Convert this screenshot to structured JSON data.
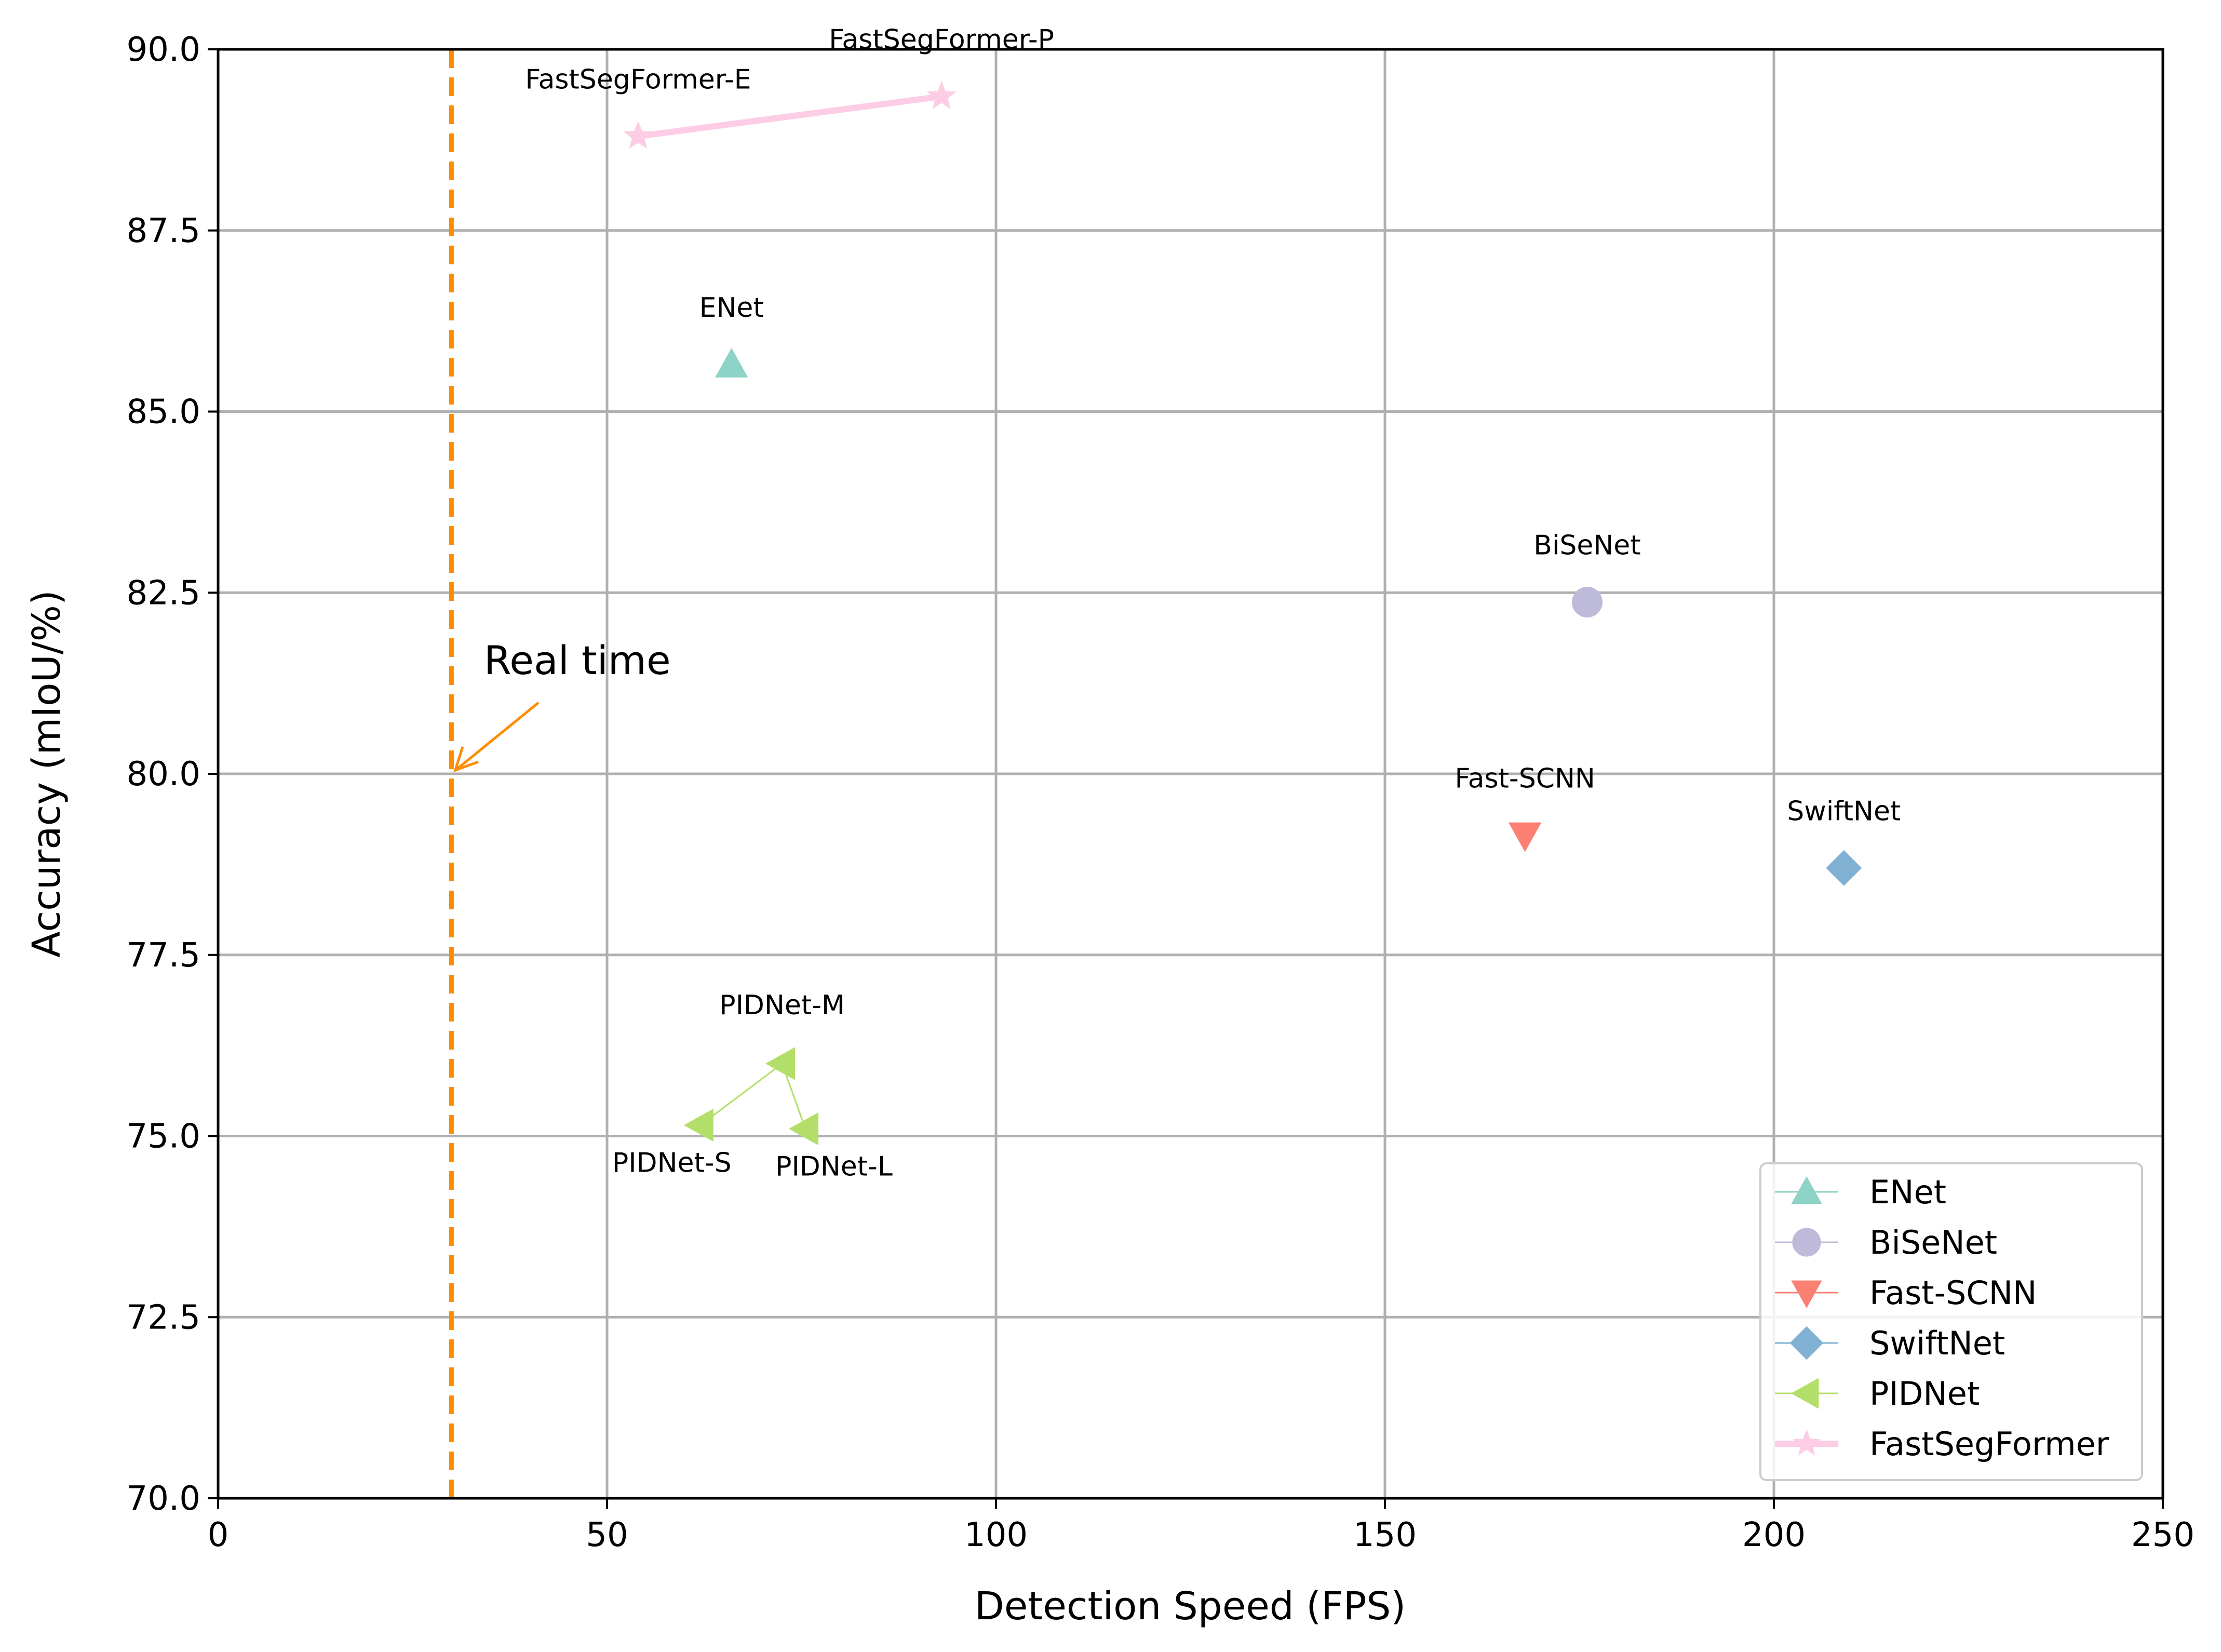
{
  "chart_data": {
    "type": "scatter",
    "xlabel": "Detection Speed (FPS)",
    "ylabel": "Accuracy (mIoU/%)",
    "xlim": [
      0,
      250
    ],
    "ylim": [
      70,
      90
    ],
    "x_ticks": [
      0,
      50,
      100,
      150,
      200,
      250
    ],
    "y_ticks": [
      70.0,
      72.5,
      75.0,
      77.5,
      80.0,
      82.5,
      85.0,
      87.5,
      90.0
    ],
    "x_tick_labels": [
      "0",
      "50",
      "100",
      "150",
      "200",
      "250"
    ],
    "y_tick_labels": [
      "70.0",
      "72.5",
      "75.0",
      "77.5",
      "80.0",
      "82.5",
      "85.0",
      "87.5",
      "90.0"
    ],
    "grid": true,
    "legend_position": "lower-right",
    "series": [
      {
        "name": "ENet",
        "color": "#8dd3c7",
        "marker": "triangle-up",
        "points": [
          {
            "x": 66,
            "y": 85.65,
            "label": "ENet"
          }
        ]
      },
      {
        "name": "BiSeNet",
        "color": "#bebada",
        "marker": "circle",
        "points": [
          {
            "x": 176,
            "y": 82.37,
            "label": "BiSeNet"
          }
        ]
      },
      {
        "name": "Fast-SCNN",
        "color": "#fb8072",
        "marker": "triangle-down",
        "points": [
          {
            "x": 168,
            "y": 79.15,
            "label": "Fast-SCNN"
          }
        ]
      },
      {
        "name": "SwiftNet",
        "color": "#80b1d3",
        "marker": "diamond",
        "points": [
          {
            "x": 209,
            "y": 78.7,
            "label": "SwiftNet"
          }
        ]
      },
      {
        "name": "PIDNet",
        "color": "#b3de69",
        "marker": "triangle-left",
        "points": [
          {
            "x": 62,
            "y": 75.15,
            "label": "PIDNet-S"
          },
          {
            "x": 72.5,
            "y": 76.0,
            "label": "PIDNet-M"
          },
          {
            "x": 75.5,
            "y": 75.1,
            "label": "PIDNet-L"
          }
        ]
      },
      {
        "name": "FastSegFormer",
        "color": "#fccde5",
        "marker": "star",
        "points": [
          {
            "x": 54,
            "y": 88.8,
            "label": "FastSegFormer-E"
          },
          {
            "x": 93,
            "y": 89.35,
            "label": "FastSegFormer-P"
          }
        ]
      }
    ],
    "reference_line": {
      "x": 30,
      "color": "#ff8c00",
      "style": "dashed"
    },
    "annotation": {
      "text": "Real time",
      "arrow_to": {
        "x": 30.5,
        "y": 80.05
      },
      "color": "#ff8c00"
    }
  }
}
